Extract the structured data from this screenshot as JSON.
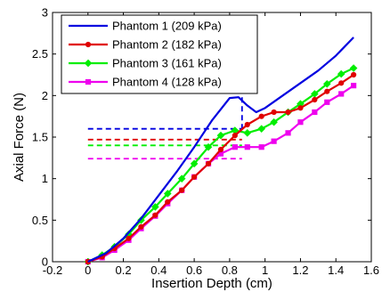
{
  "chart_data": {
    "type": "line",
    "title": "",
    "xlabel": "Insertion Depth (cm)",
    "ylabel": "Axial Force (N)",
    "xlim": [
      -0.2,
      1.6
    ],
    "ylim": [
      0,
      3
    ],
    "xticks": [
      "-0.2",
      "0",
      "0.2",
      "0.4",
      "0.6",
      "0.8",
      "1",
      "1.2",
      "1.4",
      "1.6"
    ],
    "yticks": [
      "0",
      "0.5",
      "1",
      "1.5",
      "2",
      "2.5",
      "3"
    ],
    "grid": false,
    "legend_position": "top-left",
    "series": [
      {
        "name": "Phantom 1 (209 kPa)",
        "color": "#0000e0",
        "marker": "none",
        "x": [
          0,
          0.1,
          0.2,
          0.3,
          0.4,
          0.5,
          0.6,
          0.7,
          0.8,
          0.85,
          0.9,
          0.95,
          1.0,
          1.1,
          1.2,
          1.3,
          1.4,
          1.5
        ],
        "y": [
          0,
          0.1,
          0.28,
          0.52,
          0.8,
          1.08,
          1.38,
          1.7,
          1.97,
          1.98,
          1.88,
          1.8,
          1.85,
          2.0,
          2.15,
          2.3,
          2.48,
          2.7
        ],
        "plateau_y": 1.6
      },
      {
        "name": "Phantom 2 (182 kPa)",
        "color": "#e00000",
        "marker": "circle",
        "x": [
          0,
          0.08,
          0.15,
          0.23,
          0.3,
          0.38,
          0.45,
          0.53,
          0.6,
          0.68,
          0.75,
          0.83,
          0.9,
          0.98,
          1.05,
          1.13,
          1.2,
          1.28,
          1.35,
          1.43,
          1.5
        ],
        "y": [
          0,
          0.06,
          0.16,
          0.28,
          0.42,
          0.56,
          0.72,
          0.86,
          1.02,
          1.18,
          1.35,
          1.52,
          1.65,
          1.75,
          1.8,
          1.8,
          1.85,
          1.95,
          2.05,
          2.15,
          2.25
        ],
        "plateau_y": 1.47
      },
      {
        "name": "Phantom 3 (161 kPa)",
        "color": "#00ee00",
        "marker": "diamond",
        "x": [
          0,
          0.08,
          0.15,
          0.23,
          0.3,
          0.38,
          0.45,
          0.53,
          0.6,
          0.68,
          0.75,
          0.83,
          0.9,
          0.98,
          1.05,
          1.13,
          1.2,
          1.28,
          1.35,
          1.43,
          1.5
        ],
        "y": [
          0,
          0.08,
          0.18,
          0.33,
          0.5,
          0.66,
          0.82,
          1.0,
          1.18,
          1.38,
          1.52,
          1.58,
          1.55,
          1.6,
          1.68,
          1.8,
          1.9,
          2.02,
          2.14,
          2.26,
          2.33
        ],
        "plateau_y": 1.4
      },
      {
        "name": "Phantom 4 (128 kPa)",
        "color": "#ee00ee",
        "marker": "square",
        "x": [
          0,
          0.08,
          0.15,
          0.23,
          0.3,
          0.38,
          0.45,
          0.53,
          0.6,
          0.68,
          0.75,
          0.83,
          0.9,
          0.98,
          1.05,
          1.13,
          1.2,
          1.28,
          1.35,
          1.43,
          1.5
        ],
        "y": [
          0,
          0.05,
          0.14,
          0.26,
          0.4,
          0.55,
          0.7,
          0.86,
          1.02,
          1.18,
          1.3,
          1.38,
          1.38,
          1.38,
          1.45,
          1.55,
          1.68,
          1.8,
          1.92,
          2.02,
          2.12
        ],
        "plateau_y": 1.24
      }
    ],
    "marker_line": {
      "x": 0.87,
      "color": "#0000e0"
    }
  }
}
